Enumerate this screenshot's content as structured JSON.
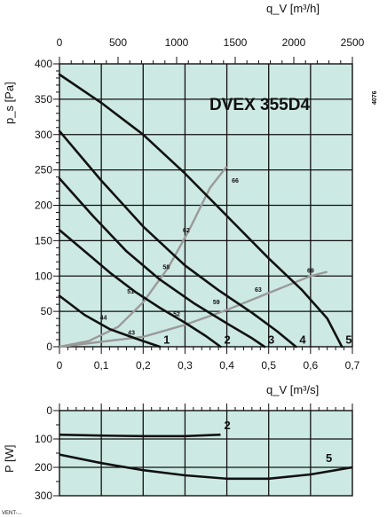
{
  "chart_data": [
    {
      "type": "line",
      "title": "DVEX 355D4",
      "side_code": "4076",
      "xlabel": "q_V [m³/s]",
      "x2label": "q_V [m³/h]",
      "ylabel": "p_s [Pa]",
      "xlim": [
        0,
        0.7
      ],
      "ylim": [
        0,
        400
      ],
      "x2lim": [
        0,
        2500
      ],
      "x_ticks": [
        "0",
        "0,1",
        "0,2",
        "0,3",
        "0,4",
        "0,5",
        "0,6",
        "0,7"
      ],
      "x2_ticks": [
        "0",
        "500",
        "1000",
        "1500",
        "2000",
        "2500"
      ],
      "y_ticks": [
        "0",
        "50",
        "100",
        "150",
        "200",
        "250",
        "300",
        "350",
        "400"
      ],
      "grid": true,
      "fan_curves": [
        {
          "name": "1",
          "points": [
            [
              0,
              72
            ],
            [
              0.06,
              45
            ],
            [
              0.12,
              25
            ],
            [
              0.18,
              12
            ],
            [
              0.24,
              0
            ]
          ]
        },
        {
          "name": "2",
          "points": [
            [
              0,
              165
            ],
            [
              0.06,
              135
            ],
            [
              0.12,
              105
            ],
            [
              0.18,
              78
            ],
            [
              0.24,
              55
            ],
            [
              0.3,
              34
            ],
            [
              0.35,
              15
            ],
            [
              0.385,
              0
            ]
          ]
        },
        {
          "name": "3",
          "points": [
            [
              0,
              238
            ],
            [
              0.08,
              185
            ],
            [
              0.16,
              135
            ],
            [
              0.24,
              95
            ],
            [
              0.32,
              62
            ],
            [
              0.4,
              33
            ],
            [
              0.46,
              12
            ],
            [
              0.49,
              0
            ]
          ]
        },
        {
          "name": "4",
          "points": [
            [
              0,
              305
            ],
            [
              0.1,
              235
            ],
            [
              0.2,
              170
            ],
            [
              0.3,
              115
            ],
            [
              0.38,
              80
            ],
            [
              0.46,
              48
            ],
            [
              0.52,
              22
            ],
            [
              0.565,
              0
            ]
          ]
        },
        {
          "name": "5",
          "points": [
            [
              0,
              385
            ],
            [
              0.1,
              345
            ],
            [
              0.2,
              300
            ],
            [
              0.3,
              245
            ],
            [
              0.4,
              185
            ],
            [
              0.5,
              125
            ],
            [
              0.58,
              80
            ],
            [
              0.64,
              40
            ],
            [
              0.675,
              0
            ]
          ]
        }
      ],
      "system_curves": [
        {
          "points": [
            [
              0,
              0
            ],
            [
              0.07,
              8
            ],
            [
              0.14,
              28
            ],
            [
              0.2,
              63
            ],
            [
              0.26,
              112
            ],
            [
              0.31,
              165
            ],
            [
              0.36,
              225
            ],
            [
              0.4,
              255
            ]
          ]
        },
        {
          "points": [
            [
              0,
              0
            ],
            [
              0.2,
              14
            ],
            [
              0.3,
              31
            ],
            [
              0.4,
              52
            ],
            [
              0.5,
              76
            ],
            [
              0.6,
              100
            ],
            [
              0.64,
              106
            ]
          ]
        }
      ],
      "point_labels": [
        {
          "text": "44",
          "x": 0.105,
          "y": 38
        },
        {
          "text": "43",
          "x": 0.172,
          "y": 17
        },
        {
          "text": "51",
          "x": 0.17,
          "y": 75
        },
        {
          "text": "52",
          "x": 0.28,
          "y": 43
        },
        {
          "text": "58",
          "x": 0.255,
          "y": 110
        },
        {
          "text": "59",
          "x": 0.375,
          "y": 60
        },
        {
          "text": "62",
          "x": 0.303,
          "y": 162
        },
        {
          "text": "63",
          "x": 0.475,
          "y": 78
        },
        {
          "text": "66",
          "x": 0.42,
          "y": 232
        },
        {
          "text": "69",
          "x": 0.6,
          "y": 105
        }
      ]
    },
    {
      "type": "line",
      "ylabel": "P [W]",
      "ylim": [
        0,
        300
      ],
      "y_inverted": true,
      "y_ticks": [
        "0",
        "100",
        "200",
        "300"
      ],
      "grid": true,
      "series": [
        {
          "name": "2",
          "points": [
            [
              0,
              85
            ],
            [
              0.1,
              88
            ],
            [
              0.2,
              90
            ],
            [
              0.3,
              90
            ],
            [
              0.385,
              85
            ]
          ]
        },
        {
          "name": "5",
          "points": [
            [
              0,
              155
            ],
            [
              0.1,
              185
            ],
            [
              0.2,
              210
            ],
            [
              0.3,
              228
            ],
            [
              0.4,
              240
            ],
            [
              0.5,
              240
            ],
            [
              0.6,
              225
            ],
            [
              0.7,
              200
            ]
          ]
        }
      ]
    }
  ],
  "footer": "VENT-..."
}
